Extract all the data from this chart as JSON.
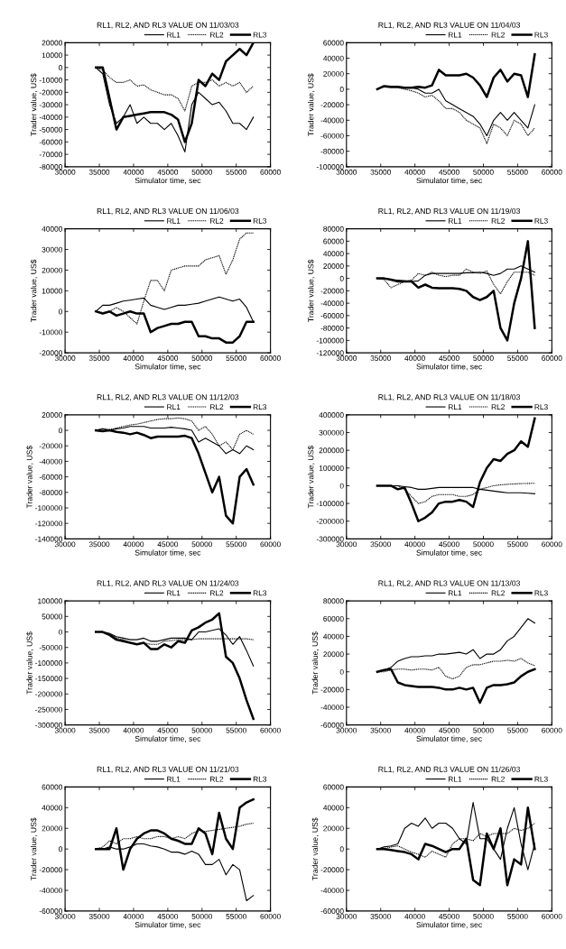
{
  "chart_data": [
    {
      "type": "line",
      "title": "RL1, RL2, AND RL3 VALUE ON 11/03/03",
      "xlabel": "Simulator time, sec",
      "ylabel": "Trader value, US$",
      "xlim": [
        30000,
        60000
      ],
      "xticks": [
        30000,
        35000,
        40000,
        45000,
        50000,
        55000,
        60000
      ],
      "ylim": [
        -80000,
        20000
      ],
      "yticks": [
        -80000,
        -70000,
        -60000,
        -50000,
        -40000,
        -30000,
        -20000,
        -10000,
        0,
        10000,
        20000
      ],
      "legend": "top right",
      "grid": false,
      "marker": "none",
      "x": [
        34500,
        35500,
        36500,
        37500,
        38500,
        39500,
        40500,
        41500,
        42500,
        43500,
        44500,
        45500,
        46500,
        47500,
        48500,
        49500,
        50500,
        51500,
        52500,
        53500,
        54500,
        55500,
        56500,
        57500
      ],
      "series": [
        {
          "name": "RL1",
          "color": "#000000",
          "line_style": "solid",
          "values": [
            0,
            -5000,
            -30000,
            -45000,
            -40000,
            -30000,
            -45000,
            -40000,
            -45000,
            -45000,
            -50000,
            -45000,
            -55000,
            -68000,
            -30000,
            -20000,
            -25000,
            -30000,
            -28000,
            -35000,
            -45000,
            -45000,
            -50000,
            -40000
          ]
        },
        {
          "name": "RL2",
          "color": "#000000",
          "line_style": "dotted",
          "values": [
            0,
            -2000,
            -8000,
            -12000,
            -12000,
            -10000,
            -15000,
            -14000,
            -18000,
            -20000,
            -22000,
            -22000,
            -25000,
            -35000,
            -15000,
            -12000,
            -12000,
            -10000,
            -15000,
            -12000,
            -15000,
            -12000,
            -20000,
            -15000
          ]
        },
        {
          "name": "RL3",
          "color": "#000000",
          "line_style": "solid",
          "values": [
            0,
            0,
            -25000,
            -50000,
            -40000,
            -39000,
            -38000,
            -37000,
            -36000,
            -36000,
            -36000,
            -38000,
            -42000,
            -60000,
            -45000,
            -10000,
            -15000,
            -5000,
            -10000,
            5000,
            10000,
            15000,
            10000,
            20000
          ]
        }
      ]
    },
    {
      "type": "line",
      "title": "RL1, RL2, AND RL3 VALUE ON 11/04/03",
      "xlabel": "Simulator time, sec",
      "ylabel": "Trader value, US$",
      "xlim": [
        30000,
        60000
      ],
      "xticks": [
        30000,
        35000,
        40000,
        45000,
        50000,
        55000,
        60000
      ],
      "ylim": [
        -100000,
        60000
      ],
      "yticks": [
        -100000,
        -80000,
        -60000,
        -40000,
        -20000,
        0,
        20000,
        40000,
        60000
      ],
      "legend": "top right",
      "grid": false,
      "marker": "none",
      "x": [
        34500,
        35500,
        36500,
        37500,
        38500,
        39500,
        40500,
        41500,
        42500,
        43500,
        44500,
        45500,
        46500,
        47500,
        48500,
        49500,
        50500,
        51500,
        52500,
        53500,
        54500,
        55500,
        56500,
        57500
      ],
      "series": [
        {
          "name": "RL1",
          "color": "#000000",
          "line_style": "solid",
          "values": [
            0,
            4000,
            3000,
            3000,
            2000,
            2000,
            0,
            -5000,
            -5000,
            0,
            -15000,
            -20000,
            -25000,
            -30000,
            -35000,
            -45000,
            -60000,
            -40000,
            -30000,
            -40000,
            -30000,
            -40000,
            -50000,
            -20000
          ]
        },
        {
          "name": "RL2",
          "color": "#000000",
          "line_style": "dotted",
          "values": [
            0,
            3000,
            2000,
            2000,
            0,
            -2000,
            -5000,
            -10000,
            -8000,
            -15000,
            -25000,
            -25000,
            -30000,
            -40000,
            -45000,
            -50000,
            -70000,
            -45000,
            -50000,
            -60000,
            -40000,
            -45000,
            -60000,
            -50000
          ]
        },
        {
          "name": "RL3",
          "color": "#000000",
          "line_style": "solid",
          "values": [
            0,
            4000,
            3000,
            3000,
            2000,
            2000,
            3000,
            2000,
            5000,
            25000,
            18000,
            18000,
            18000,
            20000,
            15000,
            5000,
            -10000,
            15000,
            25000,
            10000,
            20000,
            18000,
            -10000,
            45000
          ]
        }
      ]
    },
    {
      "type": "line",
      "title": "RL1, RL2, AND RL3 VALUE ON 11/06/03",
      "xlabel": "Simulator time, sec",
      "ylabel": "Trader value, US$",
      "xlim": [
        30000,
        60000
      ],
      "xticks": [
        30000,
        35000,
        40000,
        45000,
        50000,
        55000,
        60000
      ],
      "ylim": [
        -20000,
        40000
      ],
      "yticks": [
        -20000,
        -10000,
        0,
        10000,
        20000,
        30000,
        40000
      ],
      "legend": "top right",
      "grid": false,
      "marker": "none",
      "x": [
        34500,
        35500,
        36500,
        37500,
        38500,
        39500,
        40500,
        41500,
        42500,
        43500,
        44500,
        45500,
        46500,
        47500,
        48500,
        49500,
        50500,
        51500,
        52500,
        53500,
        54500,
        55500,
        56500,
        57500
      ],
      "series": [
        {
          "name": "RL1",
          "color": "#000000",
          "line_style": "solid",
          "values": [
            0,
            3000,
            3000,
            4000,
            5000,
            5500,
            6000,
            6500,
            3000,
            2000,
            1000,
            2000,
            3000,
            3000,
            3500,
            4000,
            5000,
            6000,
            7000,
            6000,
            5000,
            6000,
            2000,
            -5000
          ]
        },
        {
          "name": "RL2",
          "color": "#000000",
          "line_style": "dotted",
          "values": [
            0,
            -500,
            0,
            2000,
            0,
            -3000,
            -6000,
            5000,
            15000,
            15000,
            10000,
            20000,
            21000,
            22000,
            22000,
            22000,
            25000,
            26000,
            27000,
            18000,
            25000,
            35000,
            38000,
            38000
          ]
        },
        {
          "name": "RL3",
          "color": "#000000",
          "line_style": "solid",
          "values": [
            0,
            -1000,
            0,
            -2000,
            -1000,
            0,
            -1000,
            -1000,
            -10000,
            -8000,
            -7000,
            -6000,
            -6000,
            -5000,
            -5000,
            -12000,
            -12000,
            -13000,
            -13000,
            -15000,
            -15000,
            -12000,
            -5000,
            -5000
          ]
        }
      ]
    },
    {
      "type": "line",
      "title": "RL1, RL2, AND RL3 VALUE ON 11/19/03",
      "xlabel": "Simulator time, sec",
      "ylabel": "Trader value, US$",
      "xlim": [
        30000,
        60000
      ],
      "xticks": [
        30000,
        35000,
        40000,
        45000,
        50000,
        55000,
        60000
      ],
      "ylim": [
        -120000,
        80000
      ],
      "yticks": [
        -120000,
        -100000,
        -80000,
        -60000,
        -40000,
        -20000,
        0,
        20000,
        40000,
        60000,
        80000
      ],
      "legend": "top right",
      "grid": false,
      "marker": "none",
      "x": [
        34500,
        35500,
        36500,
        37500,
        38500,
        39500,
        40500,
        41500,
        42500,
        43500,
        44500,
        45500,
        46500,
        47500,
        48500,
        49500,
        50500,
        51500,
        52500,
        53500,
        54500,
        55500,
        56500,
        57500
      ],
      "series": [
        {
          "name": "RL1",
          "color": "#000000",
          "line_style": "solid",
          "values": [
            0,
            0,
            -2000,
            -3000,
            -4000,
            -5000,
            -4000,
            5000,
            8000,
            8000,
            8000,
            8000,
            8000,
            9000,
            9000,
            10000,
            8000,
            5000,
            8000,
            15000,
            15000,
            20000,
            15000,
            10000
          ]
        },
        {
          "name": "RL2",
          "color": "#000000",
          "line_style": "dotted",
          "values": [
            0,
            -2000,
            -15000,
            -10000,
            -5000,
            -3000,
            8000,
            5000,
            10000,
            5000,
            3000,
            5000,
            5000,
            15000,
            10000,
            8000,
            12000,
            -10000,
            -25000,
            -5000,
            10000,
            10000,
            10000,
            5000
          ]
        },
        {
          "name": "RL3",
          "color": "#000000",
          "line_style": "solid",
          "values": [
            0,
            0,
            -2000,
            -5000,
            -5000,
            -5000,
            -15000,
            -10000,
            -15000,
            -16000,
            -16000,
            -16000,
            -17000,
            -20000,
            -30000,
            -35000,
            -30000,
            -20000,
            -80000,
            -100000,
            -40000,
            0,
            60000,
            -80000
          ]
        }
      ]
    },
    {
      "type": "line",
      "title": "RL1, RL2, AND RL3 VALUE ON 11/12/03",
      "xlabel": "Simulator time, sec",
      "ylabel": "Trader value, US$",
      "xlim": [
        30000,
        60000
      ],
      "xticks": [
        30000,
        35000,
        40000,
        45000,
        50000,
        55000,
        60000
      ],
      "ylim": [
        -140000,
        20000
      ],
      "yticks": [
        -140000,
        -120000,
        -100000,
        -80000,
        -60000,
        -40000,
        -20000,
        0,
        20000
      ],
      "legend": "top right",
      "grid": false,
      "marker": "none",
      "x": [
        34500,
        35500,
        36500,
        37500,
        38500,
        39500,
        40500,
        41500,
        42500,
        43500,
        44500,
        45500,
        46500,
        47500,
        48500,
        49500,
        50500,
        51500,
        52500,
        53500,
        54500,
        55500,
        56500,
        57500
      ],
      "series": [
        {
          "name": "RL1",
          "color": "#000000",
          "line_style": "solid",
          "values": [
            0,
            2000,
            0,
            2000,
            3000,
            5000,
            5000,
            5000,
            3000,
            3000,
            3000,
            4000,
            3000,
            2000,
            0,
            -15000,
            -10000,
            -15000,
            -20000,
            -30000,
            -25000,
            -30000,
            -20000,
            -25000
          ]
        },
        {
          "name": "RL2",
          "color": "#000000",
          "line_style": "dotted",
          "values": [
            0,
            2000,
            1000,
            3000,
            5000,
            7000,
            8000,
            10000,
            12000,
            14000,
            15000,
            15000,
            16000,
            15000,
            12000,
            0,
            5000,
            -5000,
            -20000,
            -15000,
            -25000,
            -5000,
            0,
            -5000
          ]
        },
        {
          "name": "RL3",
          "color": "#000000",
          "line_style": "solid",
          "values": [
            0,
            -1000,
            0,
            -2000,
            -3000,
            -5000,
            -3000,
            -6000,
            -10000,
            -8000,
            -8000,
            -8000,
            -8000,
            -7000,
            -10000,
            -30000,
            -55000,
            -80000,
            -60000,
            -110000,
            -120000,
            -60000,
            -50000,
            -70000
          ]
        }
      ]
    },
    {
      "type": "line",
      "title": "RL1, RL2, AND RL3 VALUE ON 11/18/03",
      "xlabel": "Simulator time, sec",
      "ylabel": "Trader value, US$",
      "xlim": [
        30000,
        60000
      ],
      "xticks": [
        30000,
        35000,
        40000,
        45000,
        50000,
        55000,
        60000
      ],
      "ylim": [
        -300000,
        400000
      ],
      "yticks": [
        -300000,
        -200000,
        -100000,
        0,
        100000,
        200000,
        300000,
        400000
      ],
      "legend": "top right",
      "grid": false,
      "marker": "none",
      "x": [
        34500,
        35500,
        36500,
        37500,
        38500,
        39500,
        40500,
        41500,
        42500,
        43500,
        44500,
        45500,
        46500,
        47500,
        48500,
        49500,
        50500,
        51500,
        52500,
        53500,
        54500,
        55500,
        56500,
        57500
      ],
      "series": [
        {
          "name": "RL1",
          "color": "#000000",
          "line_style": "solid",
          "values": [
            0,
            0,
            0,
            0,
            -5000,
            -10000,
            -20000,
            -20000,
            -15000,
            -10000,
            -10000,
            -10000,
            -10000,
            -10000,
            -10000,
            -20000,
            -25000,
            -30000,
            -35000,
            -40000,
            -40000,
            -40000,
            -42000,
            -45000
          ]
        },
        {
          "name": "RL2",
          "color": "#000000",
          "line_style": "dotted",
          "values": [
            0,
            0,
            0,
            0,
            -20000,
            -60000,
            -100000,
            -90000,
            -60000,
            -50000,
            -50000,
            -50000,
            -60000,
            -60000,
            -50000,
            -20000,
            -10000,
            0,
            5000,
            8000,
            10000,
            12000,
            13000,
            14000
          ]
        },
        {
          "name": "RL3",
          "color": "#000000",
          "line_style": "solid",
          "values": [
            0,
            0,
            0,
            -20000,
            -10000,
            -100000,
            -200000,
            -180000,
            -150000,
            -100000,
            -90000,
            -90000,
            -80000,
            -90000,
            -120000,
            20000,
            100000,
            150000,
            140000,
            180000,
            200000,
            250000,
            220000,
            380000
          ]
        }
      ]
    },
    {
      "type": "line",
      "title": "RL1, RL2, AND RL3 VALUE ON 11/24/03",
      "xlabel": "Simulator time, sec",
      "ylabel": "Trader value, US$",
      "xlim": [
        30000,
        60000
      ],
      "xticks": [
        30000,
        35000,
        40000,
        45000,
        50000,
        55000,
        60000
      ],
      "ylim": [
        -300000,
        100000
      ],
      "yticks": [
        -300000,
        -250000,
        -200000,
        -150000,
        -100000,
        -50000,
        0,
        50000,
        100000
      ],
      "legend": "top right",
      "grid": false,
      "marker": "none",
      "x": [
        34500,
        35500,
        36500,
        37500,
        38500,
        39500,
        40500,
        41500,
        42500,
        43500,
        44500,
        45500,
        46500,
        47500,
        48500,
        49500,
        50500,
        51500,
        52500,
        53500,
        54500,
        55500,
        56500,
        57500
      ],
      "series": [
        {
          "name": "RL1",
          "color": "#000000",
          "line_style": "solid",
          "values": [
            0,
            0,
            -5000,
            -15000,
            -20000,
            -25000,
            -25000,
            -20000,
            -30000,
            -30000,
            -25000,
            -20000,
            -20000,
            -20000,
            -25000,
            0,
            0,
            5000,
            10000,
            -10000,
            -40000,
            -15000,
            -60000,
            -110000
          ]
        },
        {
          "name": "RL2",
          "color": "#000000",
          "line_style": "dotted",
          "values": [
            0,
            0,
            -5000,
            -20000,
            -25000,
            -35000,
            -40000,
            -35000,
            -40000,
            -40000,
            -30000,
            -28000,
            -25000,
            -25000,
            -25000,
            -22000,
            -22000,
            -22000,
            -22000,
            -22000,
            -22000,
            -22000,
            -22000,
            -25000
          ]
        },
        {
          "name": "RL3",
          "color": "#000000",
          "line_style": "solid",
          "values": [
            0,
            0,
            -10000,
            -25000,
            -30000,
            -35000,
            -40000,
            -35000,
            -55000,
            -55000,
            -40000,
            -50000,
            -30000,
            -35000,
            5000,
            15000,
            30000,
            40000,
            60000,
            -80000,
            -100000,
            -150000,
            -220000,
            -280000
          ]
        }
      ]
    },
    {
      "type": "line",
      "title": "RL1, RL2, AND RL3 VALUE ON 11/13/03",
      "xlabel": "Simulator time, sec",
      "ylabel": "Trader value, US$",
      "xlim": [
        30000,
        60000
      ],
      "xticks": [
        30000,
        35000,
        40000,
        45000,
        50000,
        55000,
        60000
      ],
      "ylim": [
        -60000,
        80000
      ],
      "yticks": [
        -60000,
        -40000,
        -20000,
        0,
        20000,
        40000,
        60000,
        80000
      ],
      "legend": "top right",
      "grid": false,
      "marker": "none",
      "x": [
        34500,
        35500,
        36500,
        37500,
        38500,
        39500,
        40500,
        41500,
        42500,
        43500,
        44500,
        45500,
        46500,
        47500,
        48500,
        49500,
        50500,
        51500,
        52500,
        53500,
        54500,
        55500,
        56500,
        57500
      ],
      "series": [
        {
          "name": "RL1",
          "color": "#000000",
          "line_style": "solid",
          "values": [
            0,
            2000,
            5000,
            12000,
            15000,
            17000,
            17000,
            18000,
            18000,
            20000,
            20000,
            21000,
            22000,
            20000,
            25000,
            15000,
            20000,
            20000,
            25000,
            35000,
            40000,
            50000,
            60000,
            55000
          ]
        },
        {
          "name": "RL2",
          "color": "#000000",
          "line_style": "dotted",
          "values": [
            0,
            0,
            2000,
            3000,
            3000,
            2000,
            3000,
            3000,
            2000,
            5000,
            -5000,
            -8000,
            -5000,
            5000,
            8000,
            8000,
            10000,
            12000,
            12000,
            13000,
            12000,
            15000,
            10000,
            7000
          ]
        },
        {
          "name": "RL3",
          "color": "#000000",
          "line_style": "solid",
          "values": [
            0,
            2000,
            3000,
            -12000,
            -15000,
            -16000,
            -17000,
            -17000,
            -17000,
            -18000,
            -20000,
            -20000,
            -18000,
            -20000,
            -18000,
            -35000,
            -18000,
            -15000,
            -15000,
            -14000,
            -12000,
            -5000,
            0,
            3000
          ]
        }
      ]
    },
    {
      "type": "line",
      "title": "RL1, RL2, AND RL3 VALUE ON 11/21/03",
      "xlabel": "Simulator time, sec",
      "ylabel": "Trader value, US$",
      "xlim": [
        30000,
        60000
      ],
      "xticks": [
        30000,
        35000,
        40000,
        45000,
        50000,
        55000,
        60000
      ],
      "ylim": [
        -60000,
        60000
      ],
      "yticks": [
        -60000,
        -40000,
        -20000,
        0,
        20000,
        40000,
        60000
      ],
      "legend": "top right",
      "grid": false,
      "marker": "none",
      "x": [
        34500,
        35500,
        36500,
        37500,
        38500,
        39500,
        40500,
        41500,
        42500,
        43500,
        44500,
        45500,
        46500,
        47500,
        48500,
        49500,
        50500,
        51500,
        52500,
        53500,
        54500,
        55500,
        56500,
        57500
      ],
      "series": [
        {
          "name": "RL1",
          "color": "#000000",
          "line_style": "solid",
          "values": [
            0,
            0,
            2000,
            0,
            0,
            2000,
            5000,
            5000,
            3000,
            2000,
            0,
            -3000,
            -3000,
            -5000,
            -2000,
            -5000,
            -15000,
            -15000,
            -10000,
            -25000,
            -15000,
            -20000,
            -50000,
            -45000
          ]
        },
        {
          "name": "RL2",
          "color": "#000000",
          "line_style": "dotted",
          "values": [
            0,
            2000,
            8000,
            5000,
            10000,
            10000,
            12000,
            10000,
            10000,
            12000,
            12000,
            10000,
            12000,
            10000,
            15000,
            18000,
            17000,
            18000,
            19000,
            20000,
            21000,
            22000,
            24000,
            25000
          ]
        },
        {
          "name": "RL3",
          "color": "#000000",
          "line_style": "solid",
          "values": [
            0,
            0,
            0,
            20000,
            -20000,
            0,
            10000,
            15000,
            18000,
            18000,
            15000,
            10000,
            8000,
            5000,
            5000,
            20000,
            15000,
            -5000,
            35000,
            10000,
            0,
            40000,
            45000,
            48000
          ]
        }
      ]
    },
    {
      "type": "line",
      "title": "RL1, RL2, AND RL3 VALUE ON 11/26/03",
      "xlabel": "Simulator time, sec",
      "ylabel": "Trader value, US$",
      "xlim": [
        30000,
        60000
      ],
      "xticks": [
        30000,
        35000,
        40000,
        45000,
        50000,
        55000,
        60000
      ],
      "ylim": [
        -60000,
        60000
      ],
      "yticks": [
        -60000,
        -40000,
        -20000,
        0,
        20000,
        40000,
        60000
      ],
      "legend": "top right",
      "grid": false,
      "marker": "none",
      "x": [
        34500,
        35500,
        36500,
        37500,
        38500,
        39500,
        40500,
        41500,
        42500,
        43500,
        44500,
        45500,
        46500,
        47500,
        48500,
        49500,
        50500,
        51500,
        52500,
        53500,
        54500,
        55500,
        56500,
        57500
      ],
      "series": [
        {
          "name": "RL1",
          "color": "#000000",
          "line_style": "solid",
          "values": [
            0,
            2000,
            3000,
            5000,
            20000,
            25000,
            22000,
            30000,
            20000,
            25000,
            25000,
            20000,
            10000,
            5000,
            45000,
            10000,
            10000,
            0,
            -10000,
            20000,
            40000,
            5000,
            -20000,
            5000
          ]
        },
        {
          "name": "RL2",
          "color": "#000000",
          "line_style": "dotted",
          "values": [
            0,
            0,
            2000,
            3000,
            0,
            -3000,
            -5000,
            -8000,
            -2000,
            -5000,
            -8000,
            5000,
            10000,
            10000,
            8000,
            15000,
            12000,
            15000,
            15000,
            15000,
            20000,
            18000,
            20000,
            25000
          ]
        },
        {
          "name": "RL3",
          "color": "#000000",
          "line_style": "solid",
          "values": [
            0,
            0,
            -1000,
            -2000,
            -3000,
            -5000,
            -10000,
            5000,
            3000,
            0,
            -3000,
            0,
            0,
            10000,
            -30000,
            -35000,
            15000,
            0,
            20000,
            -35000,
            -10000,
            -15000,
            40000,
            0
          ]
        }
      ]
    }
  ]
}
